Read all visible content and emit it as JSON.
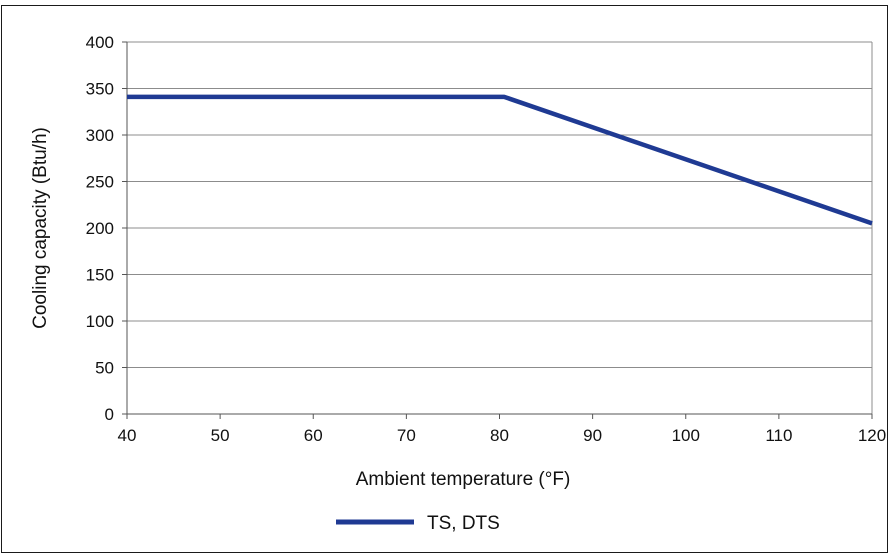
{
  "chart_data": {
    "type": "line",
    "title": "",
    "xlabel": "Ambient temperature (°F)",
    "ylabel": "Cooling capacity (Btu/h)",
    "xlim": [
      40,
      120
    ],
    "ylim": [
      0,
      400
    ],
    "x_ticks": [
      40,
      50,
      60,
      70,
      80,
      90,
      100,
      110,
      120
    ],
    "y_ticks": [
      0,
      50,
      100,
      150,
      200,
      250,
      300,
      350,
      400
    ],
    "grid": "horizontal",
    "legend_position": "bottom-center",
    "series": [
      {
        "name": "TS, DTS",
        "color": "#1f3a93",
        "x": [
          40,
          80.5,
          120
        ],
        "y": [
          341,
          341,
          205
        ]
      }
    ]
  }
}
